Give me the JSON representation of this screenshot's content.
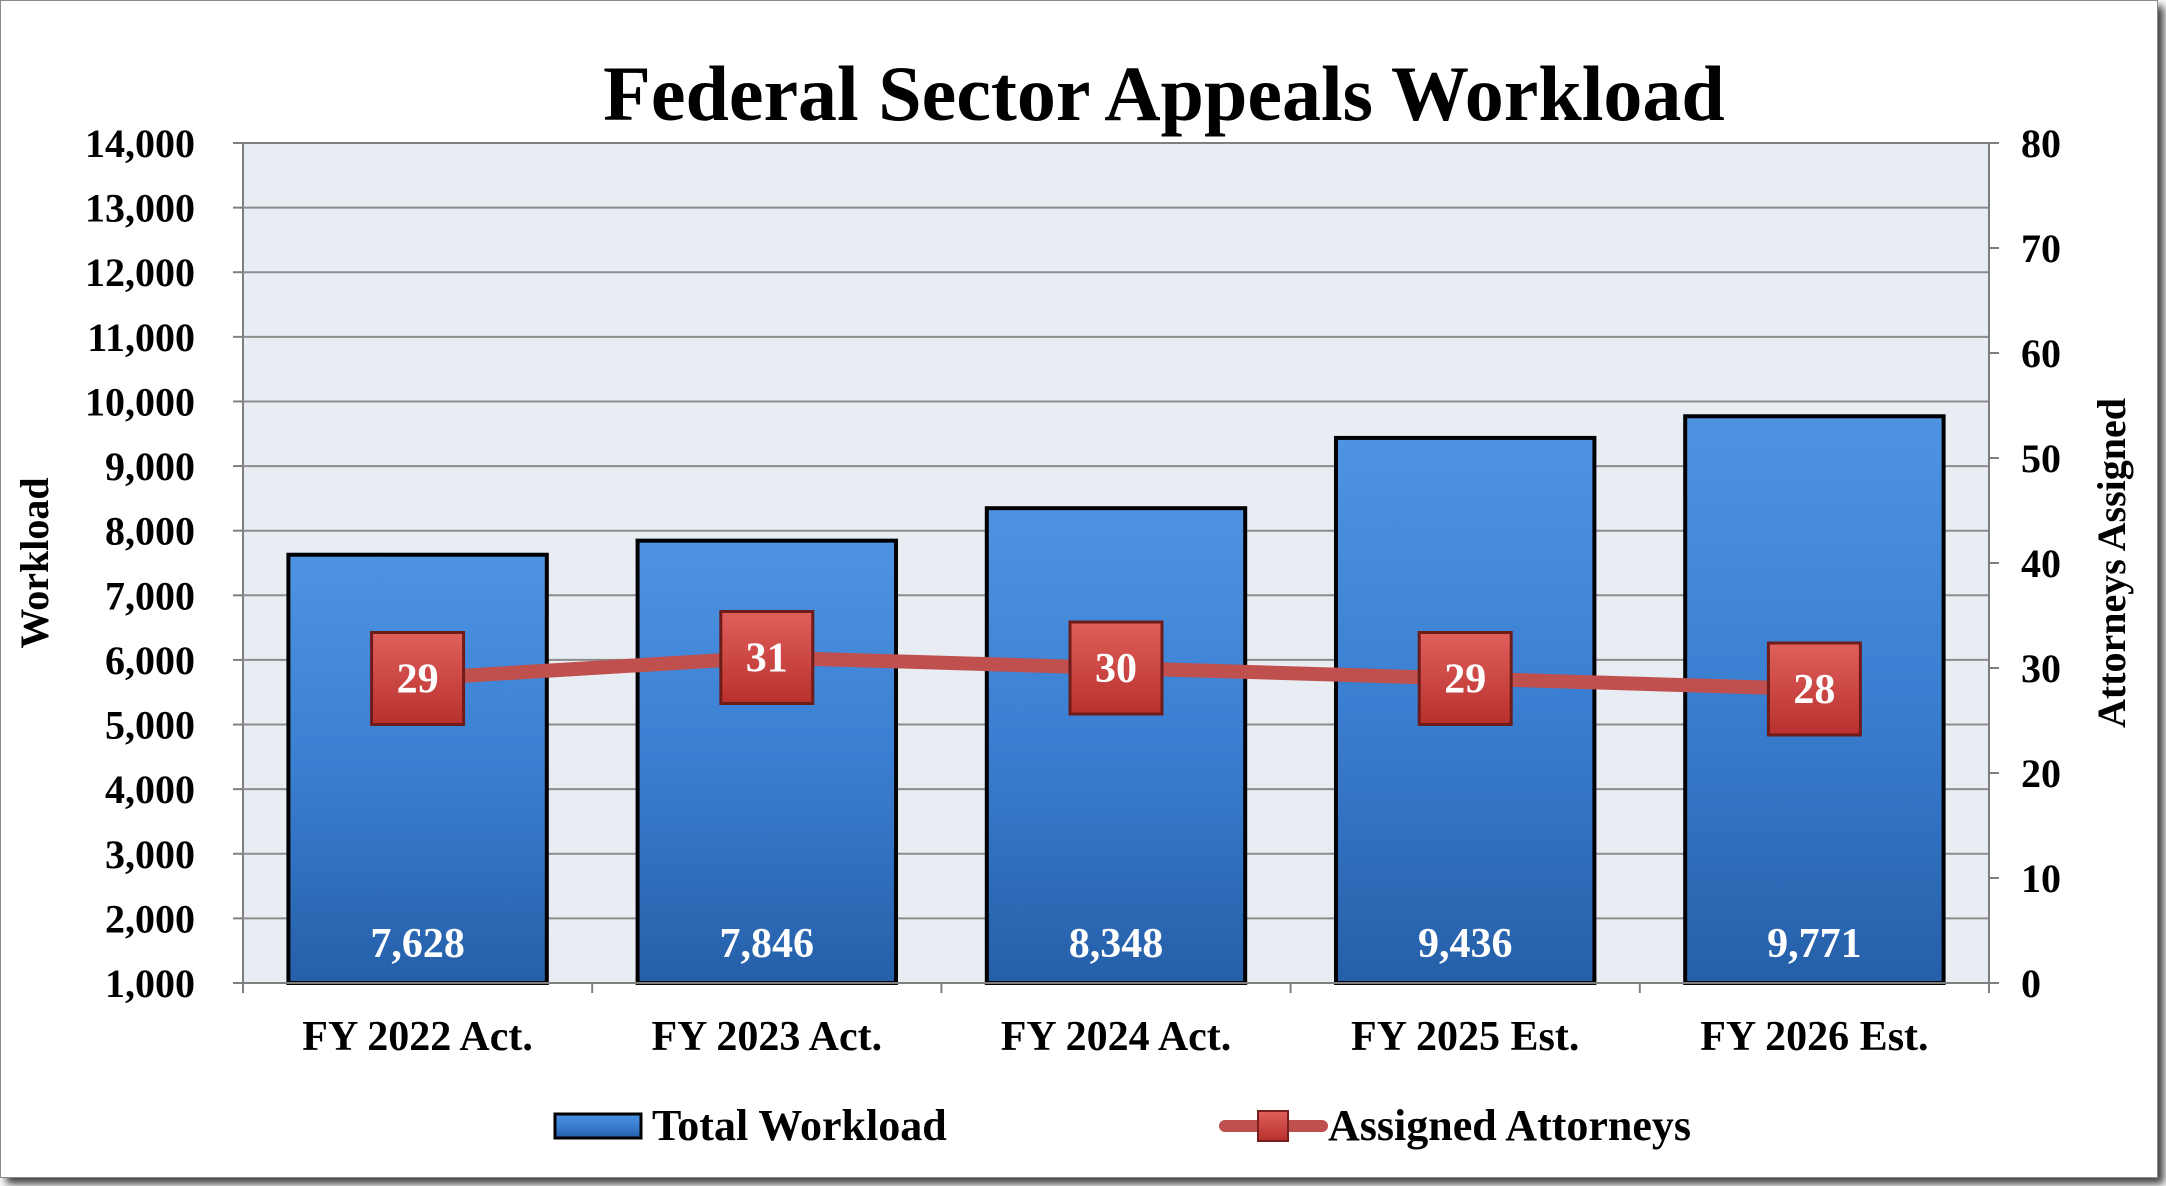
{
  "chart_data": {
    "type": "bar",
    "title": "Federal Sector Appeals Workload",
    "categories": [
      "FY 2022 Act.",
      "FY 2023 Act.",
      "FY 2024 Act.",
      "FY 2025 Est.",
      "FY 2026 Est."
    ],
    "ylabel": "Workload",
    "y2label": "Attorneys Assigned",
    "ylim": [
      1000,
      14000
    ],
    "y2lim": [
      0,
      80
    ],
    "yticks": [
      "1,000",
      "2,000",
      "3,000",
      "4,000",
      "5,000",
      "6,000",
      "7,000",
      "8,000",
      "9,000",
      "10,000",
      "11,000",
      "12,000",
      "13,000",
      "14,000"
    ],
    "y2ticks": [
      "0",
      "10",
      "20",
      "30",
      "40",
      "50",
      "60",
      "70",
      "80"
    ],
    "grid": true,
    "legend_position": "bottom",
    "series": [
      {
        "name": "Total Workload",
        "type": "bar",
        "axis": "left",
        "values": [
          7628,
          7846,
          8348,
          9436,
          9771
        ],
        "labels": [
          "7,628",
          "7,846",
          "8,348",
          "9,436",
          "9,771"
        ],
        "color": "#2f6ec0"
      },
      {
        "name": "Assigned Attorneys",
        "type": "line",
        "axis": "right",
        "values": [
          29,
          31,
          30,
          29,
          28
        ],
        "labels": [
          "29",
          "31",
          "30",
          "29",
          "28"
        ],
        "color": "#c0504d"
      }
    ]
  }
}
